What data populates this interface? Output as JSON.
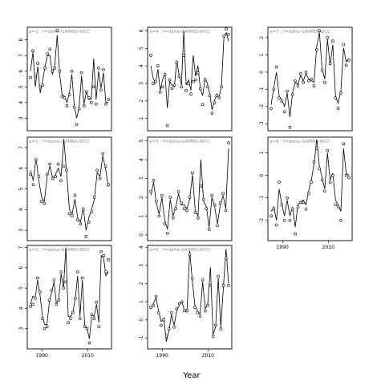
{
  "chart_data": {
    "type": "line",
    "xlabel": "Year",
    "x_ticks": [
      1990,
      2010
    ],
    "x": [
      1985,
      1986,
      1987,
      1988,
      1989,
      1990,
      1991,
      1992,
      1993,
      1994,
      1995,
      1996,
      1997,
      1998,
      1999,
      2000,
      2001,
      2002,
      2003,
      2004,
      2005,
      2006,
      2007,
      2008,
      2009,
      2010,
      2011,
      2012,
      2013,
      2014,
      2015,
      2016,
      2017,
      2018,
      2019
    ],
    "panels": [
      {
        "label": "a=1  :  f=delta-GAMNS-WCC",
        "ylim": [
          2.2,
          8.8
        ],
        "yticks": [
          3,
          4,
          5,
          6,
          7,
          8
        ],
        "points": [
          5.6,
          7.3,
          5.7,
          6.5,
          5.0,
          5.1,
          6.2,
          7.1,
          7.4,
          6.0,
          6.2,
          8.6,
          6.0,
          4.4,
          4.3,
          3.8,
          4.5,
          6.0,
          3.7,
          2.6,
          3.6,
          5.9,
          3.8,
          4.7,
          4.3,
          4.0,
          5.0,
          3.9,
          6.2,
          4.8,
          6.1,
          3.9,
          4.2
        ],
        "fit": [
          6.0,
          7.2,
          5.0,
          6.3,
          4.6,
          5.4,
          6.3,
          7.0,
          7.0,
          5.8,
          6.4,
          8.3,
          5.8,
          4.5,
          4.4,
          4.0,
          4.6,
          5.8,
          3.8,
          3.0,
          3.7,
          5.7,
          3.9,
          4.7,
          4.2,
          4.2,
          6.8,
          4.2,
          6.0,
          4.9,
          5.9,
          4.0,
          4.0
        ]
      },
      {
        "label": "a=4  :  f=delta-GAMNS-WCC",
        "ylim": [
          0.3,
          6.2
        ],
        "yticks": [
          1,
          2,
          3,
          4,
          5,
          6
        ],
        "points": [
          4.6,
          3.0,
          3.1,
          4.0,
          2.5,
          2.8,
          3.5,
          0.6,
          3.2,
          2.7,
          2.9,
          4.2,
          3.4,
          2.8,
          4.6,
          2.6,
          3.0,
          2.4,
          3.1,
          3.2,
          3.6,
          2.7,
          1.8,
          3.2,
          2.8,
          2.3,
          1.3,
          1.9,
          2.3,
          2.2,
          2.8,
          5.7,
          6.1,
          5.8
        ],
        "fit": [
          4.0,
          3.3,
          3.0,
          3.8,
          2.6,
          3.2,
          3.6,
          1.6,
          3.1,
          2.9,
          2.8,
          4.3,
          3.5,
          2.9,
          6.0,
          2.9,
          3.2,
          2.6,
          4.6,
          3.4,
          4.0,
          2.7,
          2.3,
          3.3,
          3.0,
          2.4,
          1.5,
          2.0,
          2.4,
          2.2,
          2.9,
          5.6,
          5.9,
          5.4
        ]
      },
      {
        "label": "a=7  :  f=delta-GAMNS-WCC",
        "ylim": [
          -3.4,
          2.6
        ],
        "yticks": [
          -3,
          -2,
          -1,
          0,
          1,
          2
        ],
        "points": [
          -2.1,
          -1.0,
          0.3,
          -1.5,
          -1.7,
          -2.3,
          -1.1,
          -3.2,
          -1.3,
          -0.5,
          -0.8,
          -0.1,
          -0.6,
          0.0,
          -0.5,
          -0.4,
          -0.8,
          1.3,
          2.4,
          0.1,
          -0.6,
          2.0,
          0.5,
          1.8,
          -1.5,
          -2.1,
          -1.2,
          1.6,
          0.4,
          0.7
        ],
        "fit": [
          -1.9,
          -0.9,
          0.0,
          -1.4,
          -1.6,
          -2.0,
          -1.2,
          -2.6,
          -1.2,
          -0.6,
          -0.7,
          -0.2,
          -0.5,
          -0.1,
          -0.4,
          -0.5,
          -0.6,
          1.5,
          2.3,
          0.2,
          -0.4,
          1.9,
          0.4,
          1.6,
          -1.4,
          -1.8,
          -1.1,
          1.4,
          0.6,
          0.8
        ]
      },
      {
        "label": "a=2  :  f=delta-GAMNS-WCC",
        "ylim": [
          2.5,
          7.5
        ],
        "yticks": [
          3,
          4,
          5,
          6,
          7
        ],
        "points": [
          5.7,
          5.2,
          6.4,
          5.6,
          4.4,
          4.3,
          5.7,
          6.2,
          5.5,
          5.6,
          6.2,
          5.4,
          6.1,
          5.9,
          3.8,
          3.7,
          4.7,
          3.5,
          3.3,
          4.0,
          2.7,
          3.4,
          3.9,
          4.6,
          5.9,
          5.5,
          6.7,
          6.1,
          5.2
        ],
        "fit": [
          5.9,
          5.4,
          6.5,
          5.4,
          4.6,
          4.4,
          5.6,
          6.1,
          5.5,
          5.7,
          6.0,
          5.6,
          7.4,
          5.8,
          4.0,
          3.8,
          4.5,
          3.6,
          3.4,
          4.1,
          3.0,
          3.6,
          4.0,
          4.5,
          5.8,
          5.6,
          6.6,
          6.0,
          5.1
        ]
      },
      {
        "label": "a=5  :  f=delta-GAMNS-WCC",
        "ylim": [
          -0.3,
          5.2
        ],
        "yticks": [
          0,
          1,
          2,
          3,
          4,
          5
        ],
        "points": [
          2.3,
          2.9,
          1.8,
          1.0,
          2.1,
          0.6,
          0.1,
          2.0,
          0.9,
          1.4,
          2.3,
          1.7,
          1.4,
          1.3,
          2.0,
          3.3,
          1.2,
          0.9,
          2.6,
          1.9,
          1.4,
          0.3,
          2.1,
          1.6,
          0.5,
          1.7,
          2.2,
          1.3,
          4.9
        ],
        "fit": [
          2.1,
          2.8,
          1.7,
          1.1,
          2.0,
          0.8,
          0.3,
          1.9,
          1.0,
          1.5,
          2.2,
          1.6,
          1.6,
          1.4,
          1.9,
          3.2,
          1.3,
          1.0,
          4.0,
          1.8,
          1.5,
          0.4,
          2.0,
          1.5,
          0.6,
          1.6,
          2.1,
          1.4,
          4.6
        ]
      },
      {
        "label": "a=8  :  f=delta-GAMNS-WCC",
        "ylim": [
          -2.9,
          1.7
        ],
        "yticks": [
          -2,
          -1,
          0,
          1
        ],
        "points": [
          -1.8,
          -1.5,
          -2.2,
          -0.3,
          -1.3,
          -2.0,
          -1.0,
          -2.0,
          -1.5,
          -2.6,
          -1.4,
          -1.2,
          -1.2,
          -1.5,
          -0.8,
          -0.3,
          0.6,
          1.2,
          0.3,
          -0.2,
          -0.7,
          1.1,
          -0.3,
          0.0,
          -1.3,
          -1.4,
          -2.0,
          1.4,
          0.0,
          -0.1
        ],
        "fit": [
          -1.6,
          -1.4,
          -2.0,
          -0.6,
          -1.3,
          -1.8,
          -1.1,
          -1.8,
          -1.4,
          -2.3,
          -1.3,
          -1.2,
          -1.1,
          -1.3,
          -0.7,
          -0.2,
          0.5,
          1.6,
          0.4,
          -0.1,
          -0.6,
          1.0,
          -0.2,
          0.1,
          -1.1,
          -1.3,
          -1.6,
          1.2,
          0.1,
          0.0
        ]
      },
      {
        "label": "a=3  :  f=delta-GAMNS-WCC",
        "ylim": [
          2.0,
          7.1
        ],
        "yticks": [
          3,
          4,
          5,
          6,
          7
        ],
        "points": [
          4.1,
          4.2,
          4.5,
          5.5,
          4.8,
          3.5,
          3.0,
          3.1,
          4.4,
          4.9,
          5.4,
          4.2,
          4.4,
          5.8,
          5.0,
          5.3,
          3.3,
          3.5,
          3.8,
          4.5,
          5.8,
          3.5,
          5.5,
          3.1,
          3.0,
          2.3,
          3.7,
          3.5,
          4.3,
          3.1,
          6.8,
          6.6,
          5.8,
          6.4
        ],
        "fit": [
          4.2,
          4.6,
          4.5,
          5.4,
          4.7,
          3.7,
          3.2,
          3.2,
          4.3,
          4.8,
          5.3,
          4.2,
          4.5,
          5.7,
          5.0,
          7.0,
          3.6,
          3.6,
          3.8,
          4.5,
          5.6,
          3.6,
          5.4,
          3.2,
          3.0,
          2.5,
          3.7,
          3.6,
          4.2,
          3.3,
          6.6,
          6.5,
          5.6,
          5.8
        ]
      },
      {
        "label": "a=6  :  f=delta-GAMNS-WCC",
        "ylim": [
          -1.6,
          4.1
        ],
        "yticks": [
          -1,
          0,
          1,
          2,
          3,
          4
        ],
        "points": [
          0.7,
          0.8,
          1.3,
          0.4,
          -0.3,
          0.0,
          -0.9,
          -0.5,
          0.4,
          -0.4,
          0.6,
          0.9,
          1.0,
          0.5,
          0.5,
          3.6,
          2.3,
          0.7,
          0.4,
          0.2,
          2.2,
          0.5,
          0.8,
          1.9,
          -0.9,
          -0.3,
          2.4,
          -0.5,
          1.9,
          3.4,
          1.9
        ],
        "fit": [
          0.6,
          0.9,
          1.2,
          0.5,
          -0.1,
          0.1,
          -1.2,
          -0.6,
          0.3,
          -0.3,
          0.5,
          0.8,
          1.0,
          0.5,
          0.6,
          3.8,
          2.2,
          0.8,
          0.5,
          0.3,
          2.1,
          0.6,
          0.9,
          2.9,
          -0.8,
          -0.4,
          2.3,
          -0.4,
          1.8,
          3.9,
          2.0
        ]
      }
    ]
  }
}
